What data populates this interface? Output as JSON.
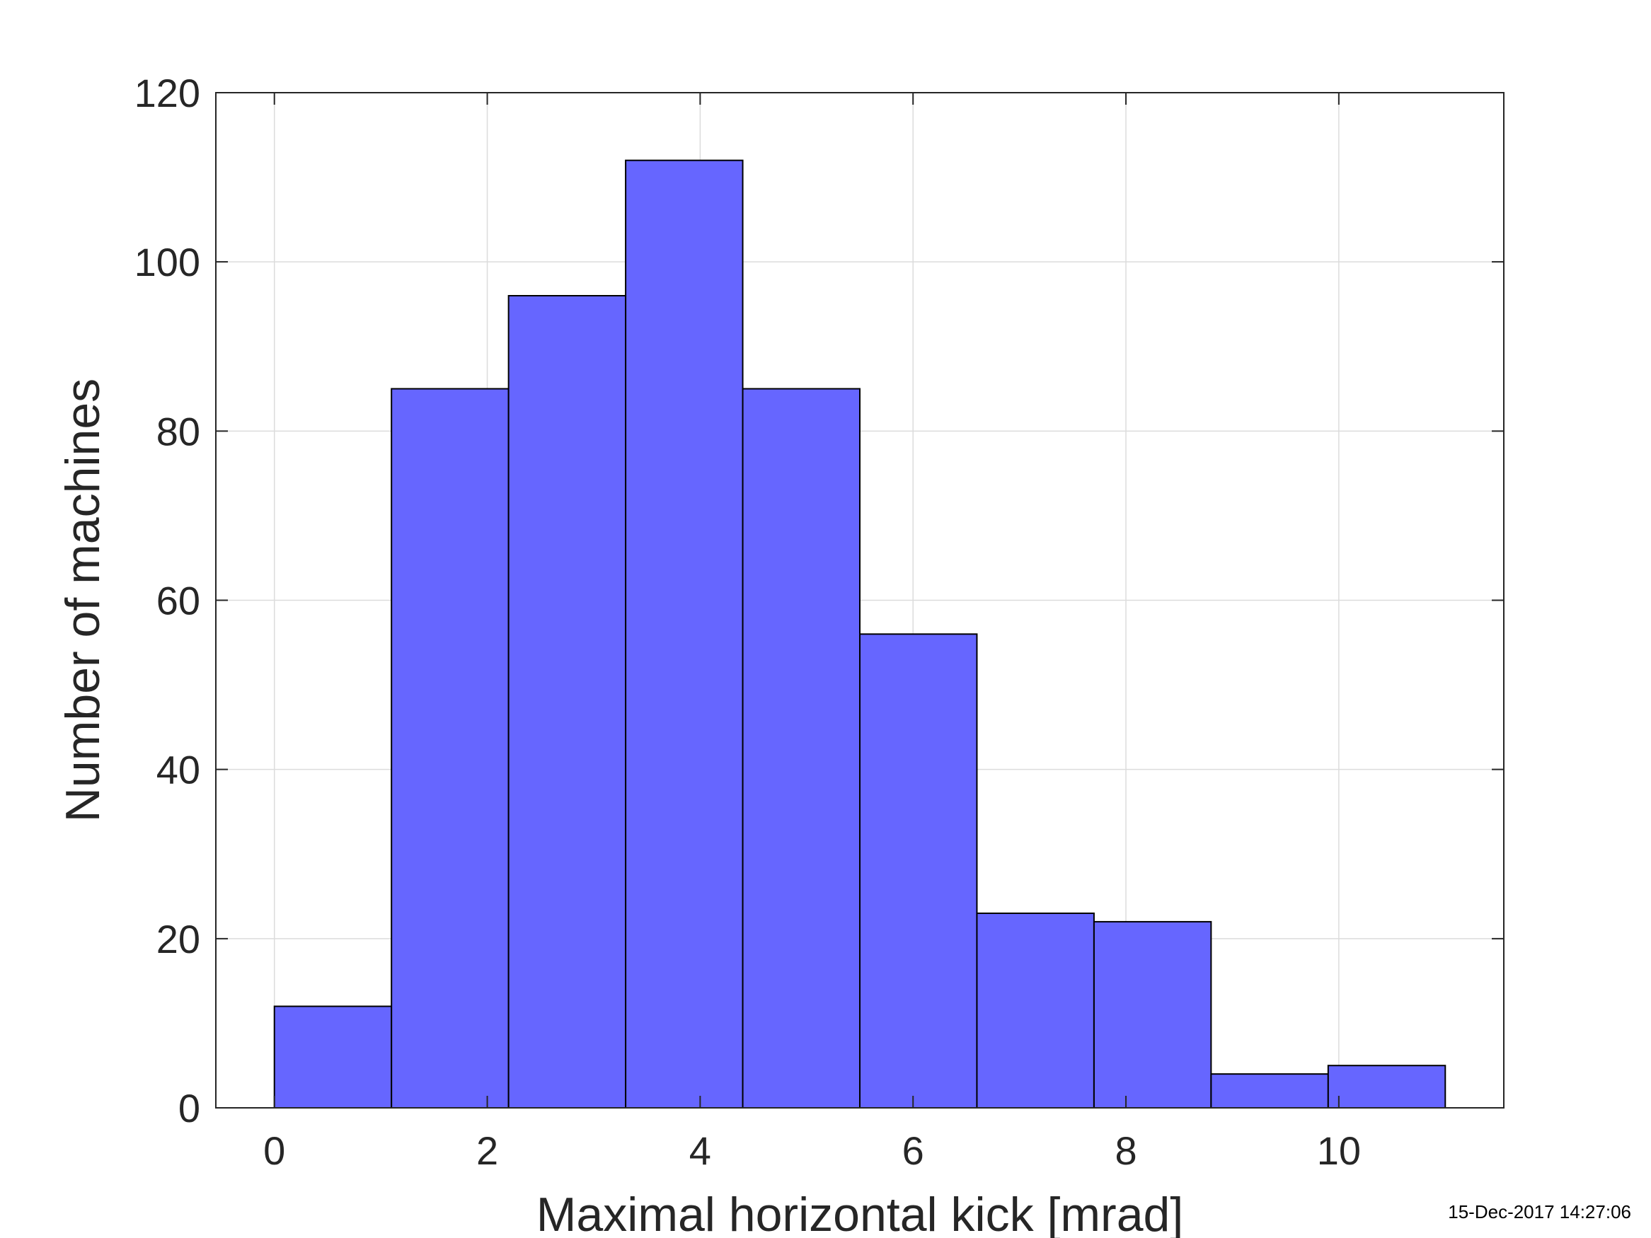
{
  "chart_data": {
    "type": "bar",
    "xlabel": "Maximal horizontal kick [mrad]",
    "ylabel": "Number of machines",
    "xlim": [
      -0.55,
      11.55
    ],
    "ylim": [
      0,
      120
    ],
    "xticks": [
      0,
      2,
      4,
      6,
      8,
      10
    ],
    "yticks": [
      0,
      20,
      40,
      60,
      80,
      100,
      120
    ],
    "bin_edges": [
      0,
      1.1,
      2.2,
      3.3,
      4.4,
      5.5,
      6.6,
      7.7,
      8.8,
      9.9,
      11.0
    ],
    "values": [
      12,
      85,
      96,
      112,
      85,
      56,
      23,
      22,
      4,
      5
    ],
    "grid": true,
    "legend": "none",
    "colors": {
      "bar_fill": "#6666ff",
      "bar_edge": "#000000",
      "axis": "#262626",
      "grid": "#dcdcdc"
    }
  },
  "timestamp": "15-Dec-2017 14:27:06"
}
